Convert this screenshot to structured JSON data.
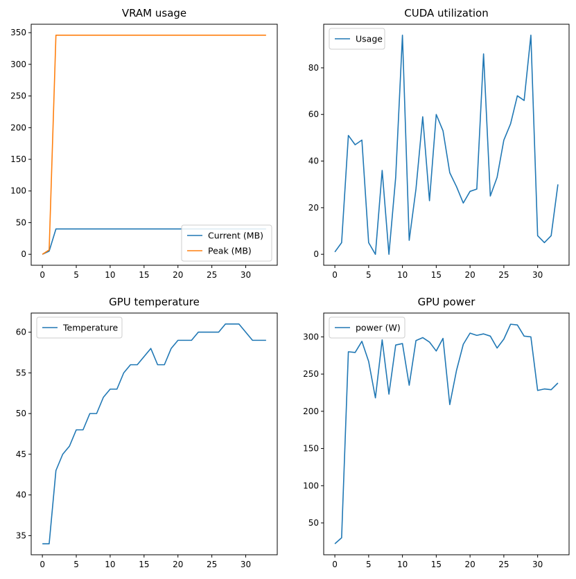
{
  "chart_data": [
    {
      "type": "line",
      "title": "VRAM usage",
      "xlabel": "",
      "ylabel": "",
      "xlim": [
        -1.65,
        34.65
      ],
      "ylim": [
        -17.3,
        363.3
      ],
      "xticks": [
        0,
        5,
        10,
        15,
        20,
        25,
        30
      ],
      "yticks": [
        0,
        50,
        100,
        150,
        200,
        250,
        300,
        350
      ],
      "legend": "lower-right",
      "grid": false,
      "x": [
        0,
        1,
        2,
        3,
        4,
        5,
        6,
        7,
        8,
        9,
        10,
        11,
        12,
        13,
        14,
        15,
        16,
        17,
        18,
        19,
        20,
        21,
        22,
        23,
        24,
        25,
        26,
        27,
        28,
        29,
        30,
        31,
        32,
        33
      ],
      "series": [
        {
          "name": "Current (MB)",
          "color": "#1f77b4",
          "values": [
            0,
            5,
            40,
            40,
            40,
            40,
            40,
            40,
            40,
            40,
            40,
            40,
            40,
            40,
            40,
            40,
            40,
            40,
            40,
            40,
            40,
            40,
            40,
            40,
            40,
            40,
            40,
            40,
            40,
            40,
            40,
            40,
            40,
            40
          ]
        },
        {
          "name": "Peak (MB)",
          "color": "#ff7f0e",
          "values": [
            0,
            7,
            346,
            346,
            346,
            346,
            346,
            346,
            346,
            346,
            346,
            346,
            346,
            346,
            346,
            346,
            346,
            346,
            346,
            346,
            346,
            346,
            346,
            346,
            346,
            346,
            346,
            346,
            346,
            346,
            346,
            346,
            346,
            346
          ]
        }
      ]
    },
    {
      "type": "line",
      "title": "CUDA utilization",
      "xlabel": "",
      "ylabel": "",
      "xlim": [
        -1.65,
        34.65
      ],
      "ylim": [
        -4.7,
        98.7
      ],
      "xticks": [
        0,
        5,
        10,
        15,
        20,
        25,
        30
      ],
      "yticks": [
        0,
        20,
        40,
        60,
        80
      ],
      "legend": "upper-left",
      "grid": false,
      "x": [
        0,
        1,
        2,
        3,
        4,
        5,
        6,
        7,
        8,
        9,
        10,
        11,
        12,
        13,
        14,
        15,
        16,
        17,
        18,
        19,
        20,
        21,
        22,
        23,
        24,
        25,
        26,
        27,
        28,
        29,
        30,
        31,
        32,
        33
      ],
      "series": [
        {
          "name": "Usage",
          "color": "#1f77b4",
          "values": [
            1,
            5,
            51,
            47,
            49,
            5,
            0,
            36,
            0,
            33,
            94,
            6,
            28,
            59,
            23,
            60,
            53,
            35,
            29,
            22,
            27,
            28,
            86,
            25,
            33,
            49,
            56,
            68,
            66,
            94,
            8,
            5,
            8,
            30
          ]
        }
      ]
    },
    {
      "type": "line",
      "title": "GPU temperature",
      "xlabel": "",
      "ylabel": "",
      "xlim": [
        -1.65,
        34.65
      ],
      "ylim": [
        32.65,
        62.35
      ],
      "xticks": [
        0,
        5,
        10,
        15,
        20,
        25,
        30
      ],
      "yticks": [
        35,
        40,
        45,
        50,
        55,
        60
      ],
      "legend": "upper-left",
      "grid": false,
      "x": [
        0,
        1,
        2,
        3,
        4,
        5,
        6,
        7,
        8,
        9,
        10,
        11,
        12,
        13,
        14,
        15,
        16,
        17,
        18,
        19,
        20,
        21,
        22,
        23,
        24,
        25,
        26,
        27,
        28,
        29,
        30,
        31,
        32,
        33
      ],
      "series": [
        {
          "name": "Temperature",
          "color": "#1f77b4",
          "values": [
            34,
            34,
            43,
            45,
            46,
            48,
            48,
            50,
            50,
            52,
            53,
            53,
            55,
            56,
            56,
            57,
            58,
            56,
            56,
            58,
            59,
            59,
            59,
            60,
            60,
            60,
            60,
            61,
            61,
            61,
            60,
            59,
            59,
            59
          ]
        }
      ]
    },
    {
      "type": "line",
      "title": "GPU power",
      "xlabel": "",
      "ylabel": "",
      "xlim": [
        -1.65,
        34.65
      ],
      "ylim": [
        7.2,
        332.0
      ],
      "xticks": [
        0,
        5,
        10,
        15,
        20,
        25,
        30
      ],
      "yticks": [
        50,
        100,
        150,
        200,
        250,
        300
      ],
      "legend": "upper-left",
      "grid": false,
      "x": [
        0,
        1,
        2,
        3,
        4,
        5,
        6,
        7,
        8,
        9,
        10,
        11,
        12,
        13,
        14,
        15,
        16,
        17,
        18,
        19,
        20,
        21,
        22,
        23,
        24,
        25,
        26,
        27,
        28,
        29,
        30,
        31,
        32,
        33
      ],
      "series": [
        {
          "name": "power (W)",
          "color": "#1f77b4",
          "values": [
            22,
            30,
            280,
            279,
            294,
            267,
            218,
            296,
            223,
            289,
            291,
            235,
            295,
            299,
            293,
            281,
            298,
            209,
            255,
            290,
            305,
            302,
            304,
            301,
            285,
            297,
            317,
            316,
            301,
            300,
            228,
            230,
            229,
            238
          ]
        }
      ]
    }
  ]
}
